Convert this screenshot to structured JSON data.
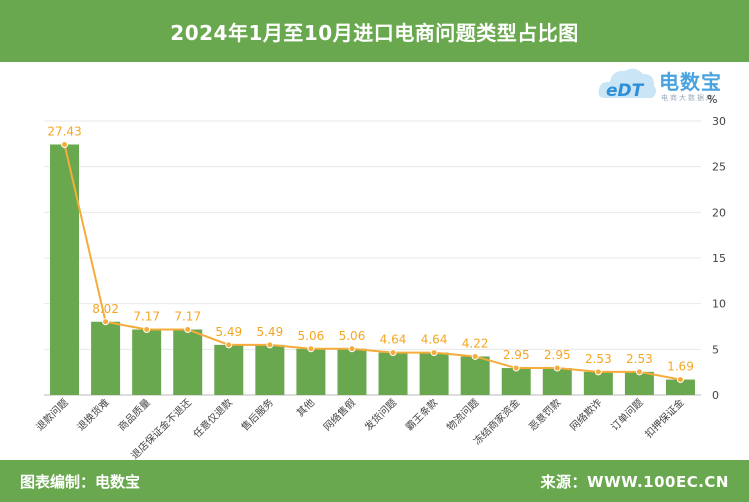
{
  "header": {
    "title": "2024年1月至10月进口电商问题类型占比图"
  },
  "footer": {
    "left": "图表编制：电数宝",
    "right": "来源：WWW.100EC.CN"
  },
  "logo": {
    "brand": "电数宝",
    "sub": "电商大数据库",
    "mark": "eDT"
  },
  "colors": {
    "bar": "#6aa84f",
    "line": "#f5ac3a",
    "label": "#f5a623",
    "header": "#6aa84f"
  },
  "chart_data": {
    "type": "bar",
    "title": "2024年1月至10月进口电商问题类型占比图",
    "unit": "%",
    "ylim": [
      0,
      30
    ],
    "yticks": [
      0,
      5,
      10,
      15,
      20,
      25,
      30
    ],
    "y_axis_side": "right",
    "grid": true,
    "categories": [
      "退款问题",
      "退换货难",
      "商品质量",
      "退店保证金不退还",
      "任意仅退款",
      "售后服务",
      "其他",
      "网络售假",
      "发货问题",
      "霸王条款",
      "物流问题",
      "冻结商家资金",
      "恶意罚款",
      "网络欺诈",
      "订单问题",
      "扣押保证金"
    ],
    "series": [
      {
        "type": "bar",
        "values": [
          27.43,
          8.02,
          7.17,
          7.17,
          5.49,
          5.49,
          5.06,
          5.06,
          4.64,
          4.64,
          4.22,
          2.95,
          2.95,
          2.53,
          2.53,
          1.69
        ]
      },
      {
        "type": "line",
        "values": [
          27.43,
          8.02,
          7.17,
          7.17,
          5.49,
          5.49,
          5.06,
          5.06,
          4.64,
          4.64,
          4.22,
          2.95,
          2.95,
          2.53,
          2.53,
          1.69
        ]
      }
    ],
    "data_labels": [
      "27.43",
      "8.02",
      "7.17",
      "7.17",
      "5.49",
      "5.49",
      "5.06",
      "5.06",
      "4.64",
      "4.64",
      "4.22",
      "2.95",
      "2.95",
      "2.53",
      "2.53",
      "1.69"
    ]
  }
}
